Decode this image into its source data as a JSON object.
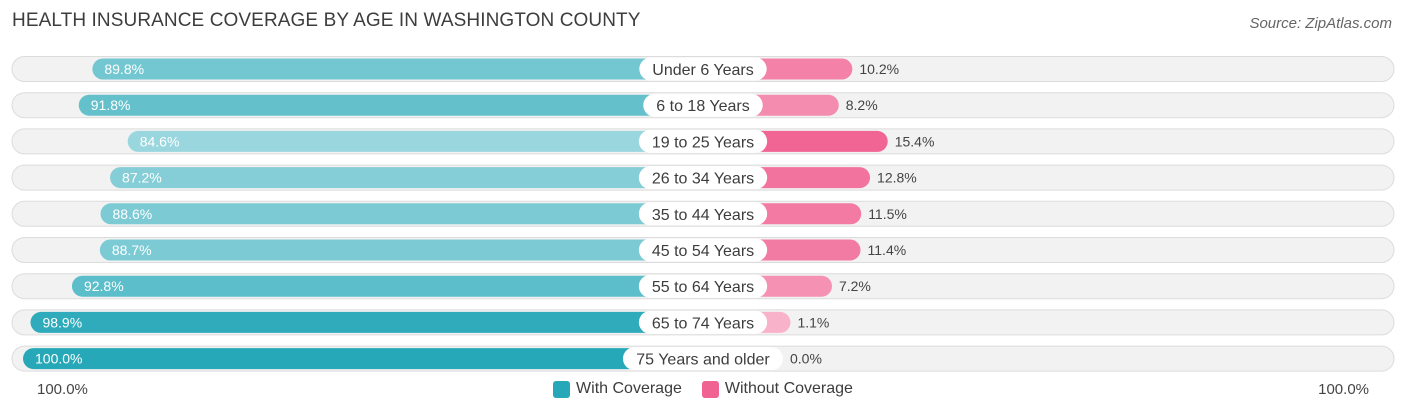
{
  "title": "HEALTH INSURANCE COVERAGE BY AGE IN WASHINGTON COUNTY",
  "source": "Source: ZipAtlas.com",
  "colors": {
    "with_coverage": "#27a8b8",
    "without_coverage": "#f06292",
    "row_bg": "#f1f1f1",
    "row_border": "#dcdcdc"
  },
  "axis": {
    "left_label": "100.0%",
    "right_label": "100.0%"
  },
  "chart_data": {
    "type": "bar",
    "orientation": "horizontal-diverging",
    "title": "HEALTH INSURANCE COVERAGE BY AGE IN WASHINGTON COUNTY",
    "categories": [
      "Under 6 Years",
      "6 to 18 Years",
      "19 to 25 Years",
      "26 to 34 Years",
      "35 to 44 Years",
      "45 to 54 Years",
      "55 to 64 Years",
      "65 to 74 Years",
      "75 Years and older"
    ],
    "series": [
      {
        "name": "With Coverage",
        "values": [
          89.8,
          91.8,
          84.6,
          87.2,
          88.6,
          88.7,
          92.8,
          98.9,
          100.0
        ],
        "labels": [
          "89.8%",
          "91.8%",
          "84.6%",
          "87.2%",
          "88.6%",
          "88.7%",
          "92.8%",
          "98.9%",
          "100.0%"
        ]
      },
      {
        "name": "Without Coverage",
        "values": [
          10.2,
          8.2,
          15.4,
          12.8,
          11.5,
          11.4,
          7.2,
          1.1,
          0.0
        ],
        "labels": [
          "10.2%",
          "8.2%",
          "15.4%",
          "12.8%",
          "11.5%",
          "11.4%",
          "7.2%",
          "1.1%",
          "0.0%"
        ]
      }
    ],
    "xlim": [
      0,
      100
    ],
    "legend": "bottom-center"
  }
}
